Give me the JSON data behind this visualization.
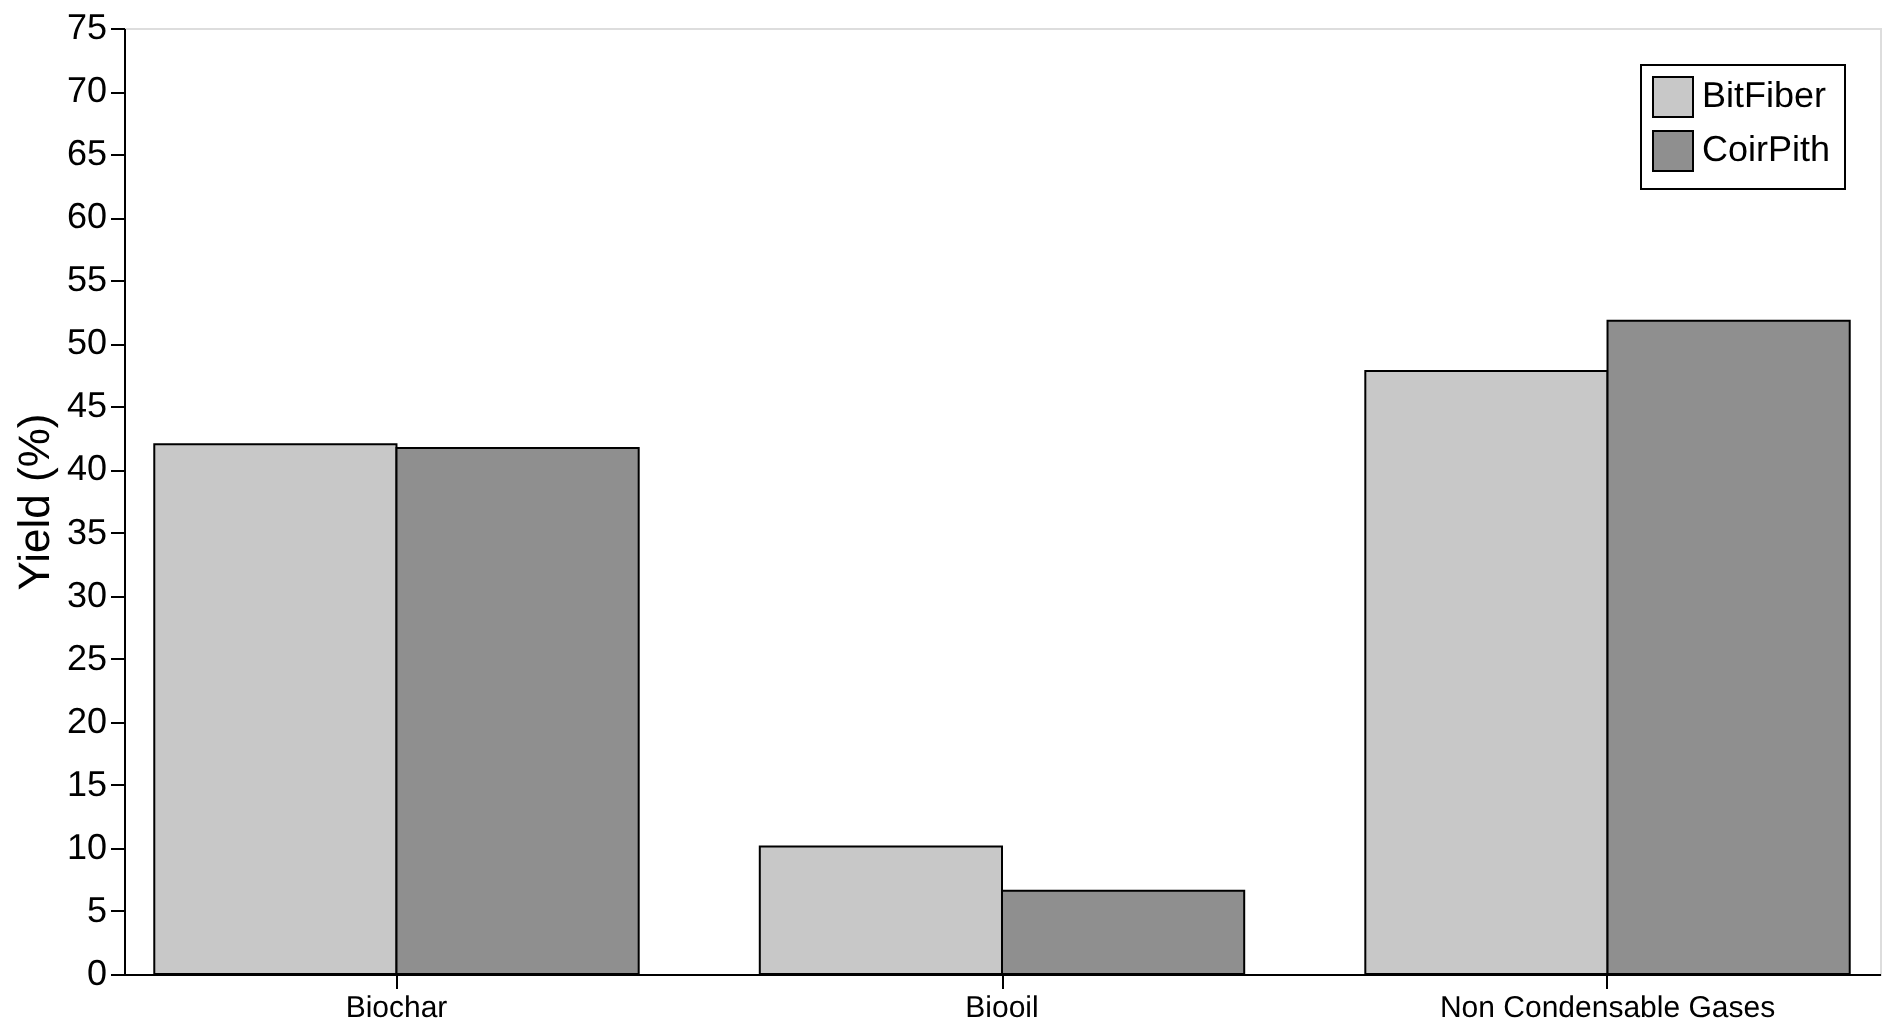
{
  "chart_data": {
    "type": "bar",
    "ylabel": "Yield (%)",
    "categories": [
      "Biochar",
      "Biooil",
      "Non Condensable Gases"
    ],
    "series": [
      {
        "name": "BitFiber",
        "color": "#c8c8c8",
        "values": [
          42.0,
          10.1,
          47.8
        ]
      },
      {
        "name": "CoirPith",
        "color": "#8f8f8f",
        "values": [
          41.7,
          6.6,
          51.8
        ]
      }
    ],
    "ylim": [
      0,
      75
    ],
    "yticks": [
      0,
      5,
      10,
      15,
      20,
      25,
      30,
      35,
      40,
      45,
      50,
      55,
      60,
      65,
      70,
      75
    ],
    "grid": false,
    "legend": "top right"
  }
}
